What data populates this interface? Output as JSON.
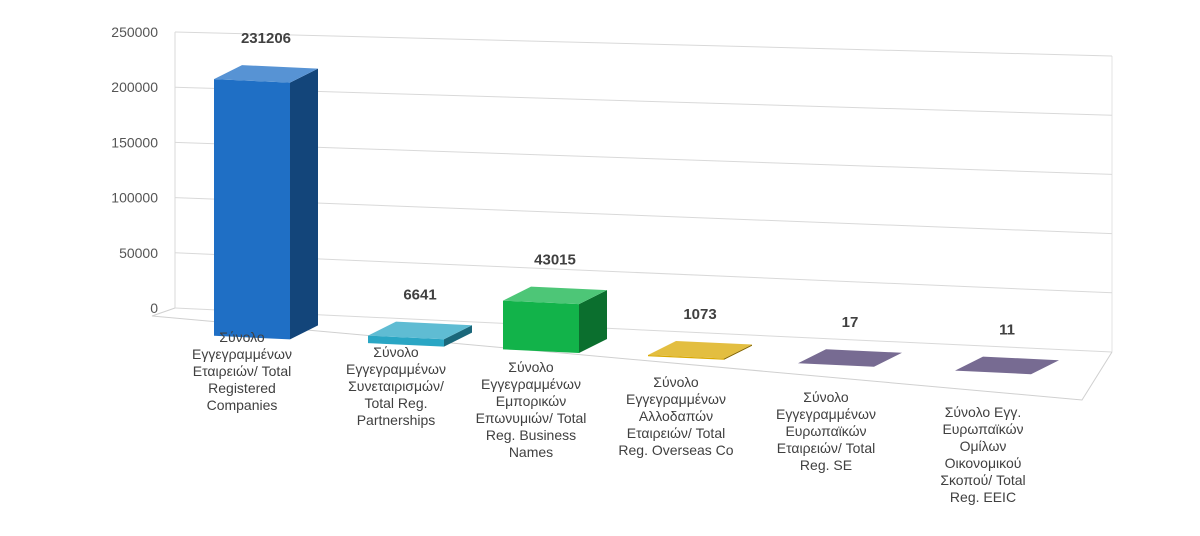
{
  "chart_data": {
    "type": "bar",
    "title": "",
    "xlabel": "",
    "ylabel": "",
    "ylim": [
      0,
      250000
    ],
    "yticks": [
      0,
      50000,
      100000,
      150000,
      200000,
      250000
    ],
    "grid": true,
    "legend": "none",
    "categories": [
      [
        "Σύνολο",
        "Εγγεγραμμένων",
        "Εταιρειών/ Total",
        "Registered",
        "Companies"
      ],
      [
        "Σύνολο",
        "Εγγεγραμμένων",
        "Συνεταιρισμών/",
        "Total Reg.",
        "Partnerships"
      ],
      [
        "Σύνολο",
        "Εγγεγραμμένων",
        "Εμπορικών",
        "Επωνυμιών/ Total",
        "Reg. Business",
        "Names"
      ],
      [
        "Σύνολο",
        "Εγγεγραμμένων",
        "Αλλοδαπών",
        "Εταιρειών/ Total",
        "Reg. Overseas Co"
      ],
      [
        "Σύνολο",
        "Εγγεγραμμένων",
        "Ευρωπαϊκών",
        "Εταιρειών/ Total",
        "Reg. SE"
      ],
      [
        "Σύνολο Εγγ.",
        "Ευρωπαϊκών",
        "Ομίλων",
        "Οικονομικού",
        "Σκοπού/ Total",
        "Reg. EEIC"
      ]
    ],
    "values": [
      231206,
      6641,
      43015,
      1073,
      17,
      11
    ],
    "data_labels": [
      "231206",
      "6641",
      "43015",
      "1073",
      "17",
      "11"
    ],
    "colors": [
      "#1f6fc5",
      "#2aa6c4",
      "#12b34a",
      "#d9a800",
      "#4a3a6e",
      "#4a3a6e"
    ]
  }
}
